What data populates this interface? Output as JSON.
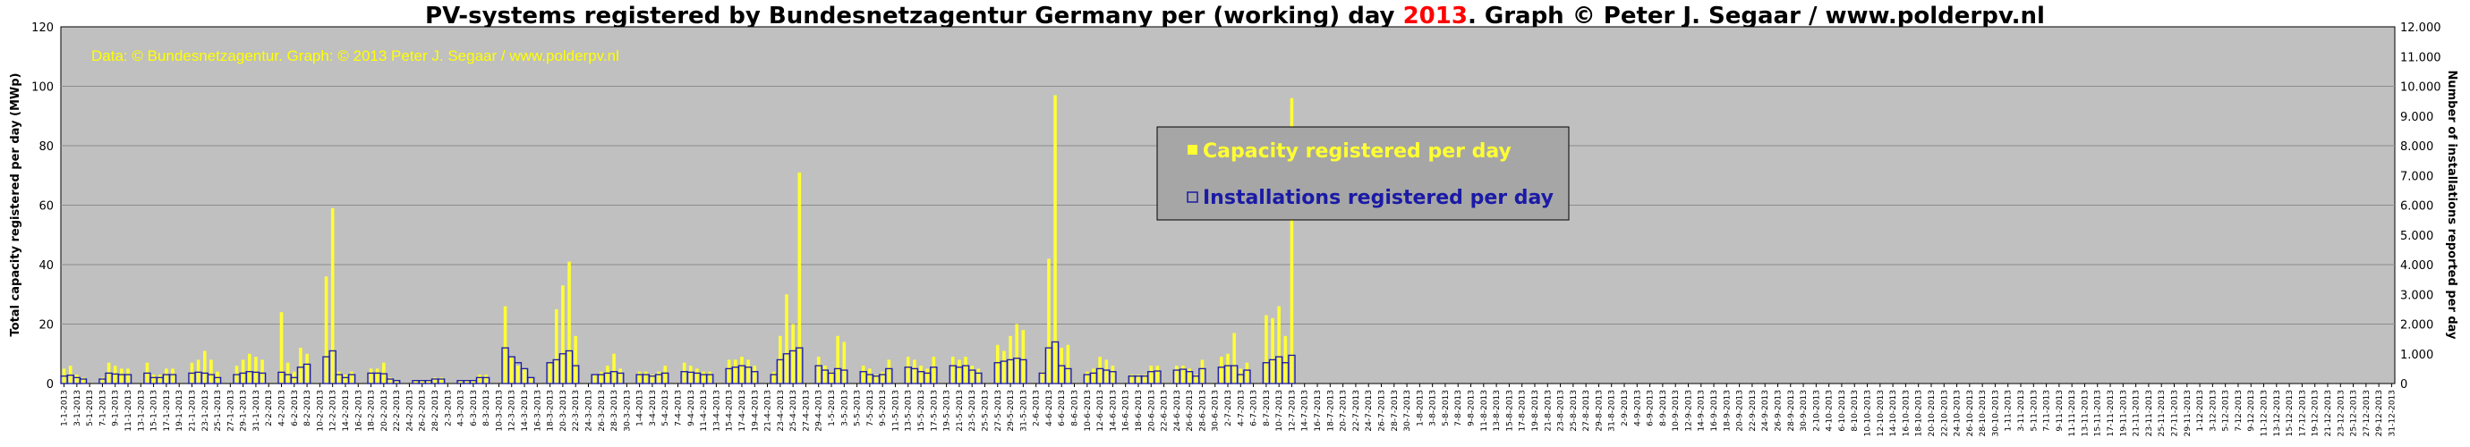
{
  "chart_data": {
    "type": "bar",
    "title": {
      "part1": "PV-systems registered by Bundesnetzagentur Germany per (working) day ",
      "year": "2013",
      "part2": ". Graph © Peter J. Segaar / www.polderpv.nl"
    },
    "watermark": "Data: © Bundesnetzagentur. Graph: © 2013 Peter J. Segaar / www.polderpv.nl",
    "ylabel_left": "Total capacity registered per day (MWp)",
    "ylabel_right": "Number of installations reported per day",
    "ylim_left": [
      0,
      120
    ],
    "ylim_right": [
      0,
      12000
    ],
    "yticks_left": [
      "0",
      "20",
      "40",
      "60",
      "80",
      "100",
      "120"
    ],
    "yticks_right": [
      "0",
      "1.000",
      "2.000",
      "3.000",
      "4.000",
      "5.000",
      "6.000",
      "7.000",
      "8.000",
      "9.000",
      "10.000",
      "11.000",
      "12.000"
    ],
    "grid": true,
    "legend_position": "center-right",
    "colors": {
      "plot_bg": "#c0c0c0",
      "capacity": "#ffff33",
      "installations": "#1a1aa6",
      "legend_bg": "#a6a6a6",
      "title_year": "#ff0000",
      "watermark": "#ffff00"
    },
    "start_date": "2013-01-01",
    "end_date": "2013-12-31",
    "categories_rule": "every second day from 1-1-2013 to 31-12-2013",
    "series": [
      {
        "name": "Capacity registered per day",
        "axis": "left",
        "values": [
          5,
          6,
          3,
          2,
          2,
          7,
          6,
          5,
          5,
          7,
          3,
          3,
          5,
          5,
          7,
          8,
          11,
          8,
          4,
          6,
          8,
          10,
          9,
          8,
          24,
          7,
          4,
          12,
          10,
          36,
          59,
          4,
          3,
          4,
          5,
          5,
          7,
          2,
          1,
          1,
          1,
          1,
          2,
          2,
          1,
          1,
          1,
          3,
          3,
          26,
          9,
          6,
          5,
          2,
          7,
          25,
          33,
          41,
          16,
          3,
          4,
          6,
          10,
          5,
          4,
          4,
          3,
          4,
          6,
          7,
          6,
          5,
          4,
          4,
          8,
          8,
          9,
          8,
          6,
          4,
          16,
          30,
          20,
          71,
          9,
          6,
          4,
          16,
          14,
          6,
          5,
          3,
          4,
          8,
          9,
          8,
          6,
          5,
          9,
          9,
          8,
          9,
          6,
          5,
          13,
          11,
          16,
          20,
          18,
          4,
          42,
          97,
          12,
          13,
          4,
          5,
          9,
          8,
          6,
          3,
          3,
          3,
          6,
          6,
          6,
          6,
          5,
          3,
          8,
          9,
          10,
          17,
          5,
          7,
          23,
          22,
          26,
          16,
          96
        ]
      },
      {
        "name": "Installations registered per day",
        "axis": "right",
        "values": [
          250,
          280,
          200,
          150,
          150,
          350,
          320,
          300,
          300,
          350,
          200,
          200,
          300,
          300,
          350,
          380,
          350,
          300,
          200,
          300,
          350,
          400,
          380,
          350,
          380,
          300,
          200,
          550,
          650,
          900,
          1100,
          300,
          200,
          300,
          350,
          350,
          330,
          150,
          100,
          100,
          100,
          100,
          150,
          150,
          100,
          100,
          100,
          200,
          200,
          1200,
          900,
          700,
          500,
          200,
          700,
          800,
          1000,
          1100,
          600,
          300,
          300,
          350,
          400,
          350,
          300,
          300,
          250,
          300,
          350,
          400,
          380,
          350,
          300,
          300,
          500,
          550,
          600,
          550,
          400,
          300,
          800,
          1000,
          1100,
          1200,
          600,
          450,
          350,
          500,
          450,
          400,
          300,
          250,
          300,
          500,
          550,
          500,
          400,
          350,
          550,
          600,
          550,
          600,
          450,
          350,
          700,
          750,
          800,
          850,
          800,
          350,
          1200,
          1400,
          600,
          500,
          300,
          350,
          500,
          450,
          400,
          250,
          250,
          250,
          400,
          420,
          450,
          480,
          400,
          250,
          500,
          550,
          600,
          600,
          300,
          450,
          700,
          800,
          900,
          700,
          950
        ]
      }
    ]
  }
}
